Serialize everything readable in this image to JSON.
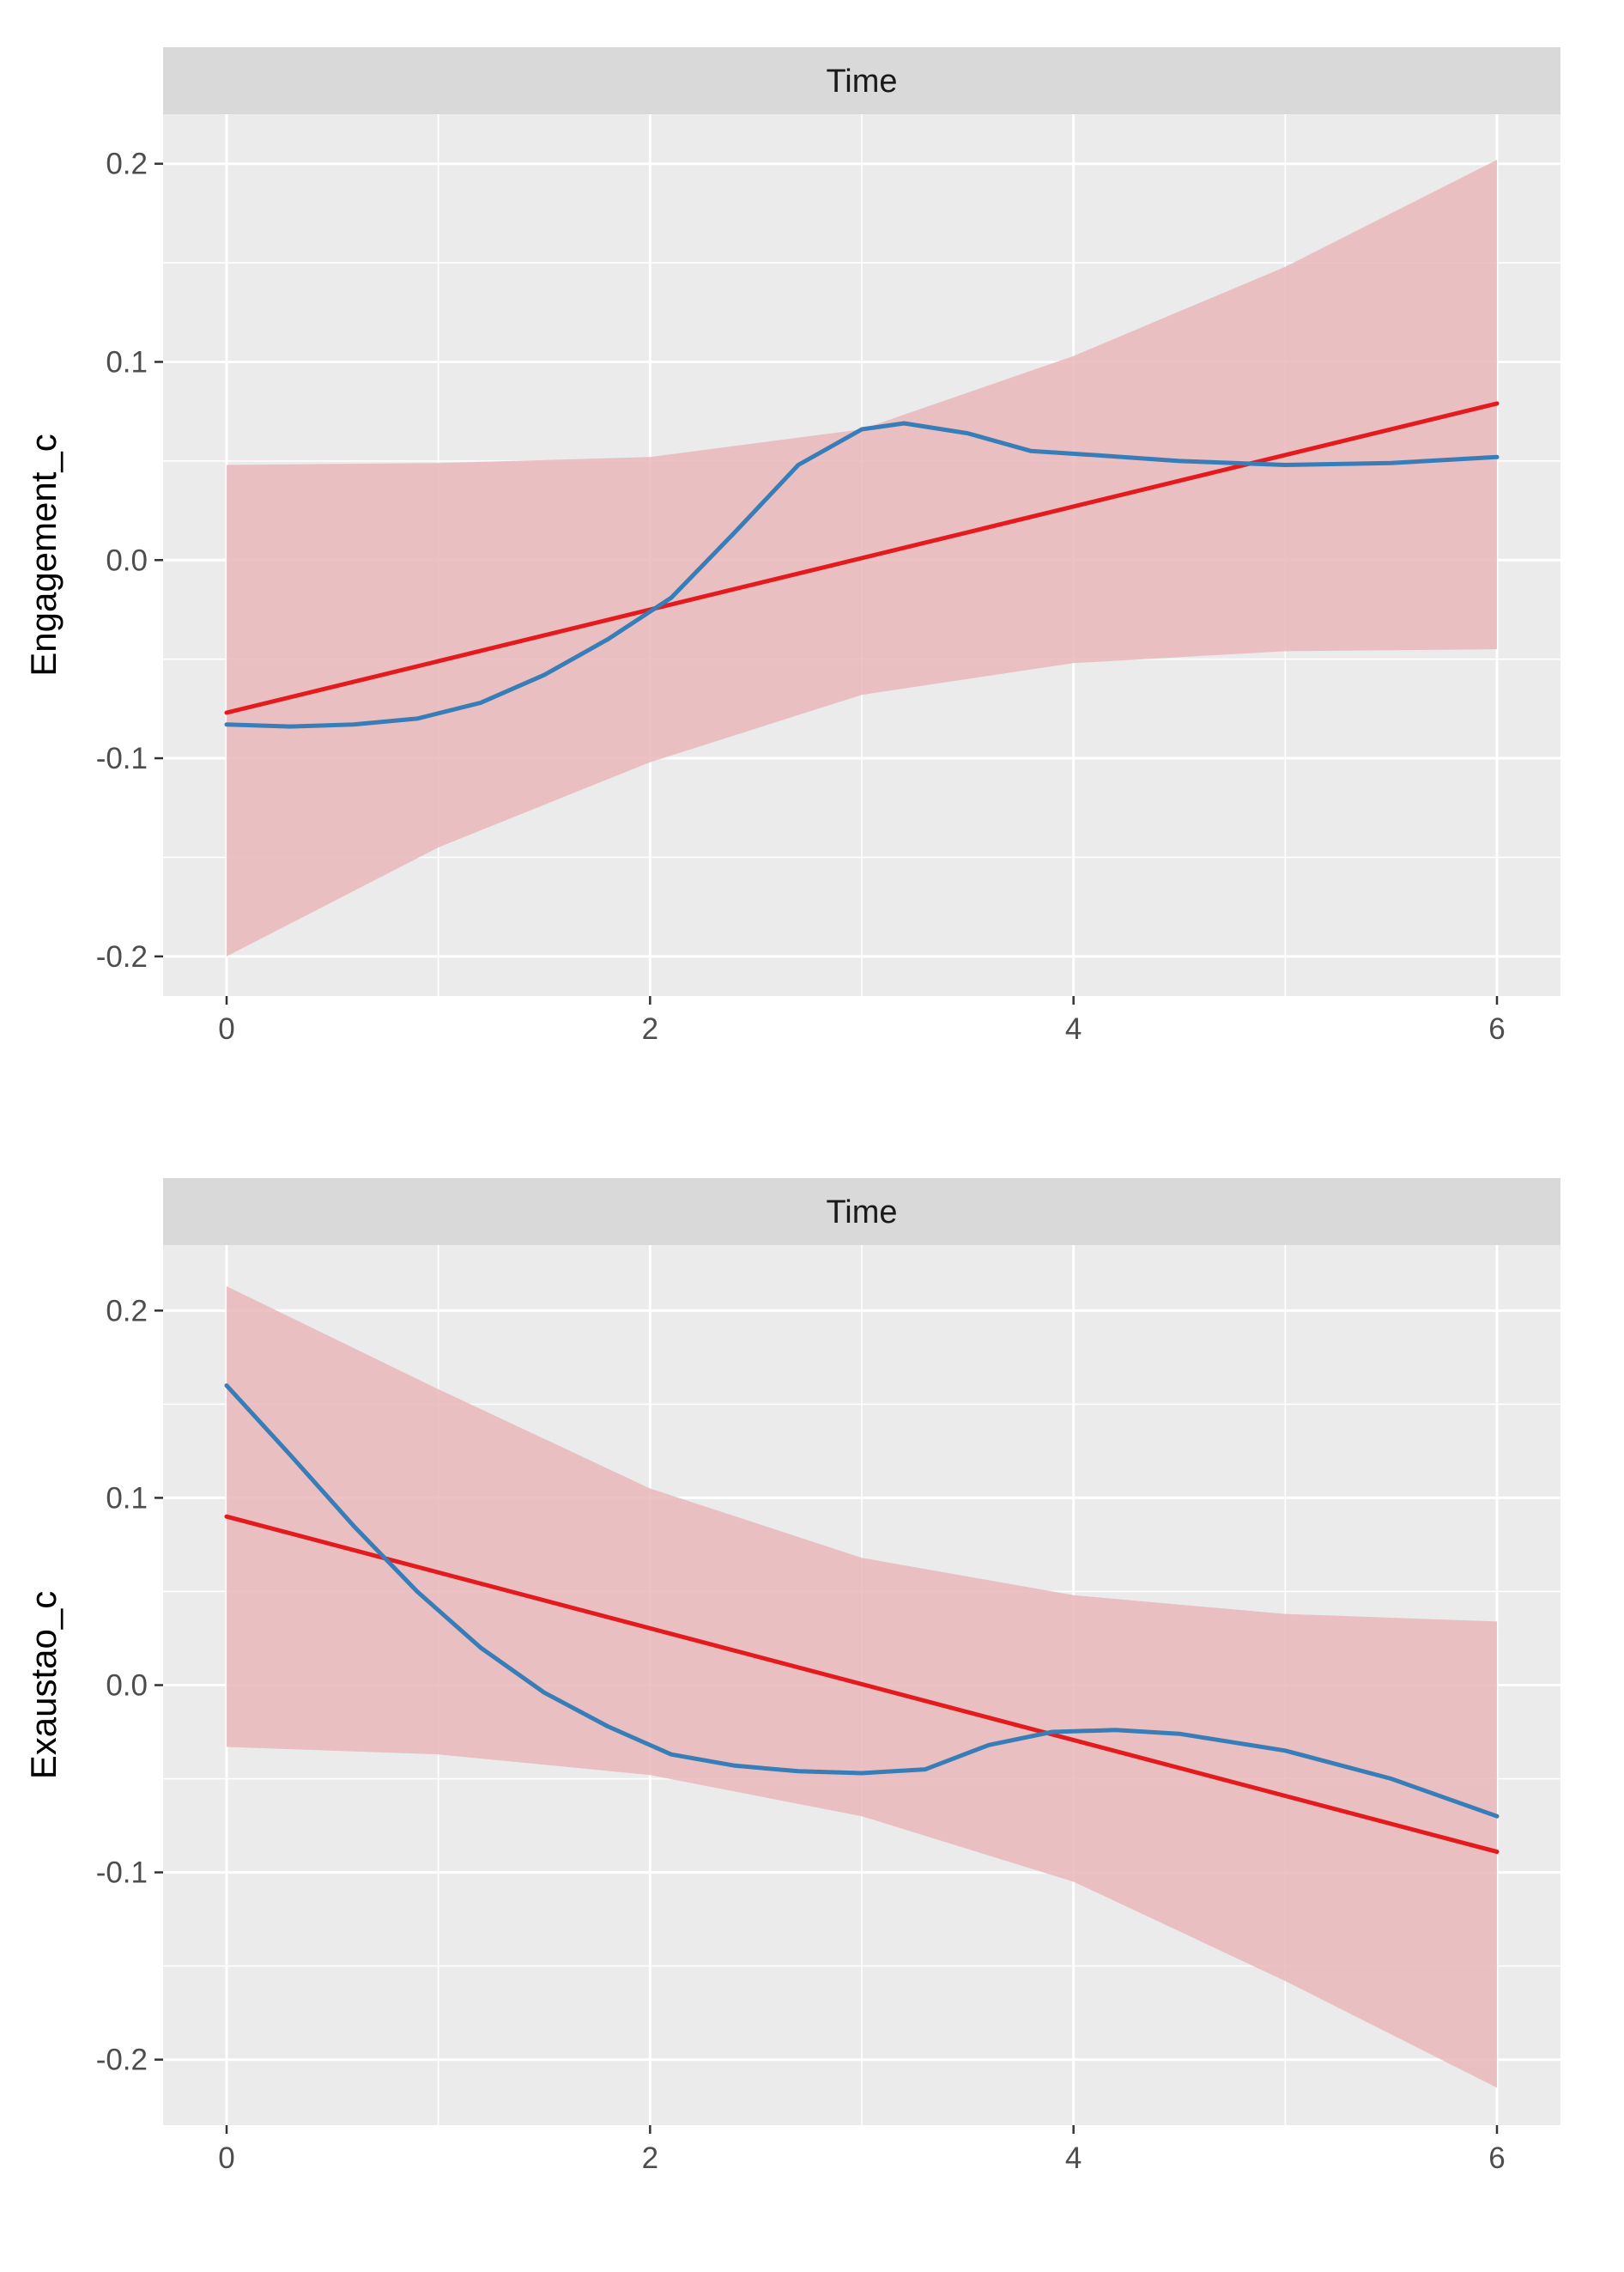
{
  "colors": {
    "panel_bg": "#EBEBEB",
    "strip_bg": "#D9D9D9",
    "grid": "#FFFFFF",
    "ribbon": "#E8B4B8",
    "linear_line": "#E41A1C",
    "smooth_line": "#377EB8",
    "tick_text": "#4D4D4D",
    "tick_mark": "#333333"
  },
  "chart_data": [
    {
      "type": "line",
      "strip_label": "Time",
      "xlabel": "",
      "ylabel": "Engagement_c",
      "xlim": [
        -0.3,
        6.3
      ],
      "ylim": [
        -0.22,
        0.225
      ],
      "x_ticks": [
        0,
        2,
        4,
        6
      ],
      "x_tick_labels": [
        "0",
        "2",
        "4",
        "6"
      ],
      "y_ticks": [
        -0.2,
        -0.1,
        0.0,
        0.1,
        0.2
      ],
      "y_tick_labels": [
        "-0.2",
        "-0.1",
        "0.0",
        "0.1",
        "0.2"
      ],
      "grid": true,
      "series": [
        {
          "name": "ribbon",
          "x": [
            0,
            1,
            2,
            3,
            4,
            5,
            6
          ],
          "lower": [
            -0.2,
            -0.145,
            -0.102,
            -0.068,
            -0.052,
            -0.046,
            -0.045
          ],
          "upper": [
            0.048,
            0.049,
            0.052,
            0.066,
            0.103,
            0.148,
            0.202
          ]
        },
        {
          "name": "linear",
          "x": [
            0,
            6
          ],
          "values": [
            -0.077,
            0.079
          ]
        },
        {
          "name": "smooth",
          "x": [
            0,
            0.3,
            0.6,
            0.9,
            1.2,
            1.5,
            1.8,
            2.1,
            2.4,
            2.7,
            3.0,
            3.2,
            3.5,
            3.8,
            4.1,
            4.5,
            5.0,
            5.5,
            6.0
          ],
          "values": [
            -0.083,
            -0.084,
            -0.083,
            -0.08,
            -0.072,
            -0.058,
            -0.04,
            -0.019,
            0.014,
            0.048,
            0.066,
            0.069,
            0.064,
            0.055,
            0.053,
            0.05,
            0.048,
            0.049,
            0.052
          ]
        }
      ]
    },
    {
      "type": "line",
      "strip_label": "Time",
      "xlabel": "",
      "ylabel": "Exaustao_c",
      "xlim": [
        -0.3,
        6.3
      ],
      "ylim": [
        -0.235,
        0.235
      ],
      "x_ticks": [
        0,
        2,
        4,
        6
      ],
      "x_tick_labels": [
        "0",
        "2",
        "4",
        "6"
      ],
      "y_ticks": [
        -0.2,
        -0.1,
        0.0,
        0.1,
        0.2
      ],
      "y_tick_labels": [
        "-0.2",
        "-0.1",
        "0.0",
        "0.1",
        "0.2"
      ],
      "grid": true,
      "series": [
        {
          "name": "ribbon",
          "x": [
            0,
            1,
            2,
            3,
            4,
            5,
            6
          ],
          "lower": [
            -0.033,
            -0.037,
            -0.048,
            -0.07,
            -0.105,
            -0.158,
            -0.215
          ],
          "upper": [
            0.213,
            0.158,
            0.105,
            0.068,
            0.048,
            0.038,
            0.034
          ]
        },
        {
          "name": "linear",
          "x": [
            0,
            6
          ],
          "values": [
            0.09,
            -0.089
          ]
        },
        {
          "name": "smooth",
          "x": [
            0,
            0.3,
            0.6,
            0.9,
            1.2,
            1.5,
            1.8,
            2.1,
            2.4,
            2.7,
            3.0,
            3.3,
            3.6,
            3.9,
            4.2,
            4.5,
            5.0,
            5.5,
            6.0
          ],
          "values": [
            0.16,
            0.123,
            0.085,
            0.05,
            0.02,
            -0.004,
            -0.022,
            -0.037,
            -0.043,
            -0.046,
            -0.047,
            -0.045,
            -0.032,
            -0.025,
            -0.024,
            -0.026,
            -0.035,
            -0.05,
            -0.07
          ]
        }
      ]
    }
  ]
}
